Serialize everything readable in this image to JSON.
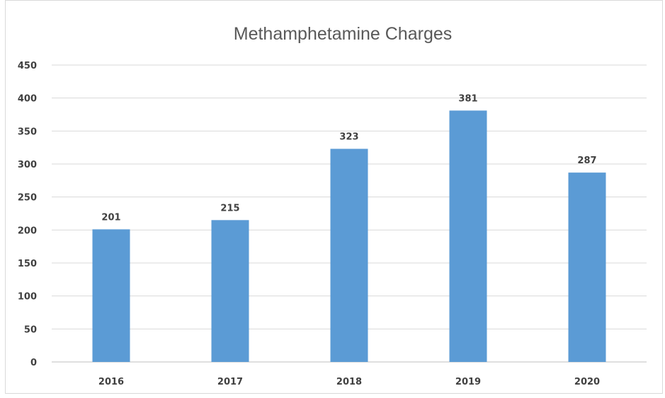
{
  "chart_data": {
    "type": "bar",
    "title": "Methamphetamine Charges",
    "xlabel": "",
    "ylabel": "",
    "categories": [
      "2016",
      "2017",
      "2018",
      "2019",
      "2020"
    ],
    "values": [
      201,
      215,
      323,
      381,
      287
    ],
    "data_labels": [
      "201",
      "215",
      "323",
      "381",
      "287"
    ],
    "y_ticks": [
      "0",
      "50",
      "100",
      "150",
      "200",
      "250",
      "300",
      "350",
      "400",
      "450"
    ],
    "ylim": [
      0,
      450
    ],
    "grid": true,
    "legend": "none",
    "bar_color": "#5B9BD5"
  }
}
